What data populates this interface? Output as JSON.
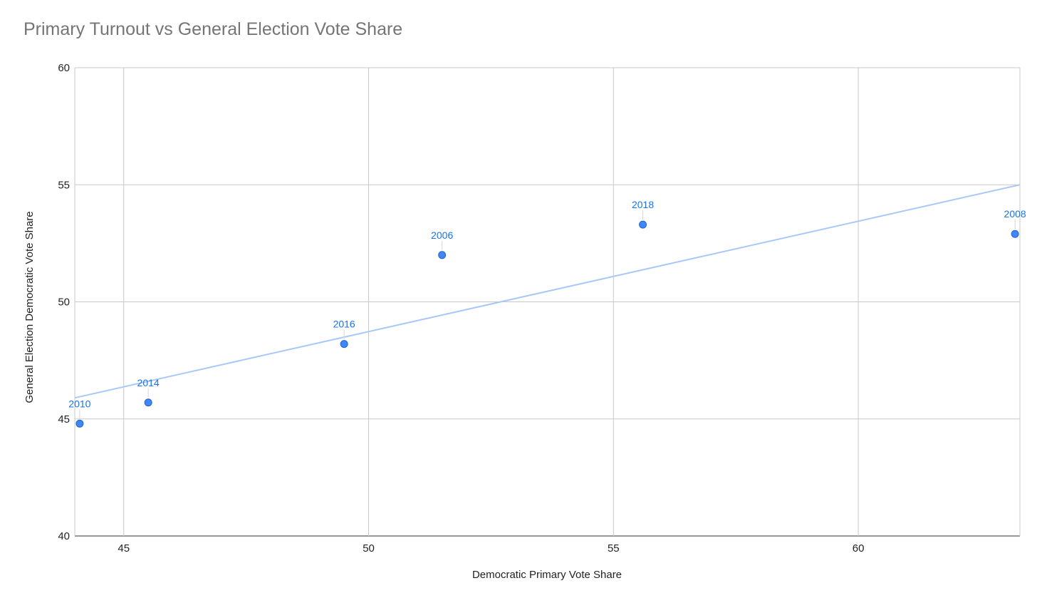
{
  "chart_data": {
    "type": "scatter",
    "title": "Primary Turnout vs General Election Vote Share",
    "xlabel": "Democratic Primary Vote Share",
    "ylabel": "General Election Democratic Vote Share",
    "xlim": [
      44,
      63.3
    ],
    "ylim": [
      40,
      60
    ],
    "x_ticks": [
      45,
      50,
      55,
      60
    ],
    "y_ticks": [
      40,
      45,
      50,
      55,
      60
    ],
    "grid": true,
    "points": [
      {
        "label": "2010",
        "x": 44.1,
        "y": 44.8
      },
      {
        "label": "2014",
        "x": 45.5,
        "y": 45.7
      },
      {
        "label": "2016",
        "x": 49.5,
        "y": 48.2
      },
      {
        "label": "2006",
        "x": 51.5,
        "y": 52.0
      },
      {
        "label": "2018",
        "x": 55.6,
        "y": 53.3
      },
      {
        "label": "2008",
        "x": 63.2,
        "y": 52.9
      }
    ],
    "trendline": {
      "x": [
        44,
        63.3
      ],
      "y": [
        45.9,
        55.0
      ]
    },
    "colors": {
      "point": "#4285f4",
      "point_stroke": "#1a66d6",
      "label": "#1a73e8",
      "trendline": "#a8c7fa",
      "grid": "#c8c8c8",
      "axis_text": "#222222",
      "title": "#757575"
    }
  }
}
